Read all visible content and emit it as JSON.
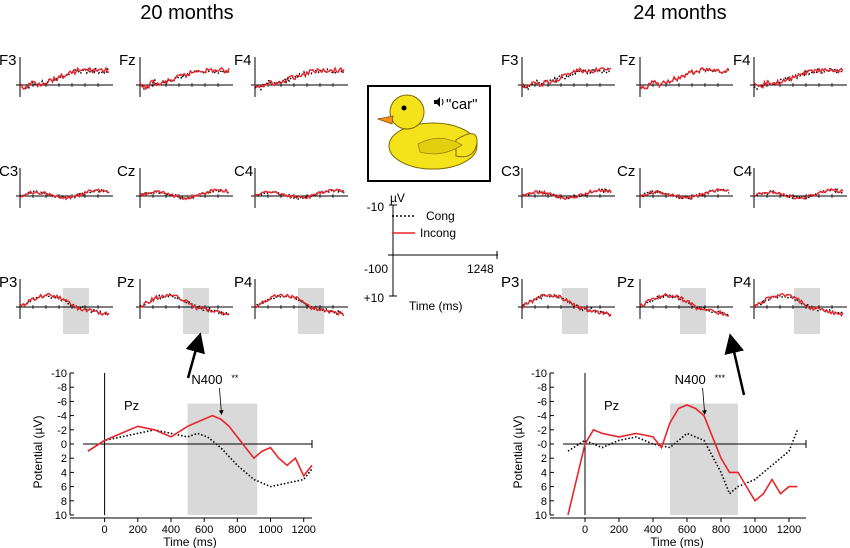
{
  "titles": {
    "left": "20 months",
    "right": "24 months"
  },
  "electrodes": [
    "F3",
    "Fz",
    "F4",
    "C3",
    "Cz",
    "C4",
    "P3",
    "Pz",
    "P4"
  ],
  "colors": {
    "cong": "#000000",
    "incong": "#e8252b",
    "window": "#d9d9d9"
  },
  "stimulus": {
    "icon": "duck-icon",
    "speaker_icon": "speaker-icon",
    "word": "\"car\""
  },
  "scale": {
    "unit": "µV",
    "neg_label": "-10",
    "pos_label": "+10",
    "start_label": "-100",
    "end_label": "1248",
    "time_label": "Time (ms)"
  },
  "legend": {
    "cong": "Cong",
    "incong": "Incong"
  },
  "chart_data": [
    {
      "id": "left-pz-enlarged",
      "type": "line",
      "title": "Pz",
      "xlabel": "Time (ms)",
      "ylabel": "Potential (µV)",
      "xlim": [
        -100,
        1250
      ],
      "ylim": [
        -10,
        10
      ],
      "y_inverted": true,
      "xticks": [
        0,
        200,
        400,
        600,
        800,
        1000,
        1200
      ],
      "yticks": [
        -10,
        -8,
        -6,
        -4,
        -2,
        0,
        2,
        4,
        6,
        8,
        10
      ],
      "ytick_labels": [
        "-10",
        "-8",
        "-6",
        "-4",
        "-2",
        "0",
        "2",
        "4",
        "6",
        "8",
        "10"
      ],
      "shaded_window": [
        500,
        920
      ],
      "annotation": {
        "text": "N400",
        "sig": "**",
        "x": 680,
        "y": -4
      },
      "series": [
        {
          "name": "Cong",
          "style": "dotted",
          "x": [
            -100,
            0,
            100,
            200,
            300,
            400,
            500,
            560,
            620,
            700,
            800,
            850,
            900,
            1000,
            1100,
            1200,
            1250
          ],
          "values": [
            1,
            -0.5,
            -1,
            -1.5,
            -2,
            -1.5,
            -1,
            -1.5,
            -1,
            0.5,
            3,
            4,
            5,
            6,
            5.5,
            5,
            3.5
          ]
        },
        {
          "name": "Incong",
          "style": "solid",
          "x": [
            -100,
            0,
            100,
            200,
            300,
            400,
            500,
            600,
            650,
            700,
            750,
            800,
            850,
            900,
            950,
            1000,
            1050,
            1100,
            1150,
            1200,
            1250
          ],
          "values": [
            1,
            -0.5,
            -1.5,
            -2.5,
            -2,
            -1,
            -2.5,
            -3.5,
            -4,
            -3.5,
            -2.5,
            -1,
            0.5,
            2,
            1,
            0.5,
            2,
            3,
            2,
            4.5,
            3
          ]
        }
      ]
    },
    {
      "id": "right-pz-enlarged",
      "type": "line",
      "title": "Pz",
      "xlabel": "Time (ms)",
      "ylabel": "Potential (µV)",
      "xlim": [
        -100,
        1300
      ],
      "ylim": [
        -10,
        10
      ],
      "y_inverted": true,
      "xticks": [
        0,
        200,
        400,
        600,
        800,
        1000,
        1200
      ],
      "yticks": [
        -10,
        -8,
        -6,
        -4,
        -2,
        0,
        2,
        4,
        6,
        8,
        10
      ],
      "ytick_labels": [
        "-10",
        "-8",
        "-6",
        "-4",
        "-2",
        "-0",
        "2",
        "4",
        "6",
        "8",
        "10"
      ],
      "shaded_window": [
        500,
        900
      ],
      "annotation": {
        "text": "N400",
        "sig": "***",
        "x": 680,
        "y": -4
      },
      "series": [
        {
          "name": "Cong",
          "style": "dotted",
          "x": [
            -100,
            0,
            100,
            200,
            300,
            400,
            500,
            600,
            700,
            800,
            850,
            900,
            1000,
            1100,
            1200,
            1250
          ],
          "values": [
            1,
            -0.5,
            0.5,
            -0.5,
            -1,
            0,
            0.5,
            -1.5,
            -0.5,
            4,
            7,
            6,
            5,
            3,
            1,
            -2
          ]
        },
        {
          "name": "Incong",
          "style": "solid",
          "x": [
            -100,
            0,
            50,
            100,
            200,
            300,
            400,
            450,
            500,
            550,
            600,
            650,
            700,
            750,
            800,
            850,
            900,
            950,
            1000,
            1050,
            1100,
            1150,
            1200,
            1250
          ],
          "values": [
            10,
            0,
            -2,
            -1.5,
            -1,
            -1.5,
            -1,
            0.5,
            -3,
            -5,
            -5.5,
            -5,
            -4,
            -1,
            2,
            4,
            4,
            6,
            8,
            7,
            5,
            7,
            6,
            6
          ]
        }
      ]
    }
  ]
}
